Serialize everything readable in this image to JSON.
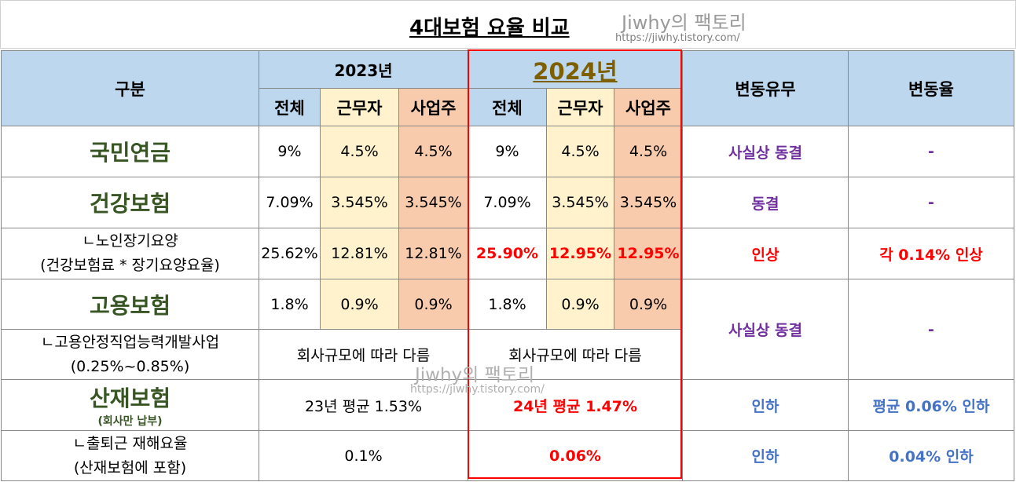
{
  "title": "4대보험 요율 비교",
  "watermark": {
    "name": "Jiwhy의 팩토리",
    "url": "https://jiwhy.tistory.com/"
  },
  "header": {
    "category": "구분",
    "year_2023": "2023년",
    "year_2024": "2024년",
    "change_status": "변동유무",
    "change_rate": "변동율",
    "cols": {
      "total": "전체",
      "worker": "근무자",
      "employer": "사업주"
    }
  },
  "rows": {
    "pension": {
      "name": "국민연금",
      "v2023": [
        "9%",
        "4.5%",
        "4.5%"
      ],
      "v2024": [
        "9%",
        "4.5%",
        "4.5%"
      ],
      "status": "사실상 동결",
      "rate": "-"
    },
    "health": {
      "name": "건강보험",
      "v2023": [
        "7.09%",
        "3.545%",
        "3.545%"
      ],
      "v2024": [
        "7.09%",
        "3.545%",
        "3.545%"
      ],
      "status": "동결",
      "rate": "-"
    },
    "ltc": {
      "name_line1": "ㄴ노인장기요양",
      "name_line2": "(건강보험료 * 장기요양요율)",
      "v2023": [
        "25.62%",
        "12.81%",
        "12.81%"
      ],
      "v2024": [
        "25.90%",
        "12.95%",
        "12.95%"
      ],
      "status": "인상",
      "rate": "각 0.14% 인상"
    },
    "employment": {
      "name": "고용보험",
      "v2023": [
        "1.8%",
        "0.9%",
        "0.9%"
      ],
      "v2024": [
        "1.8%",
        "0.9%",
        "0.9%"
      ],
      "status": "사실상 동결",
      "rate": "-"
    },
    "emp_stability": {
      "name_line1": "ㄴ고용안정직업능력개발사업",
      "name_line2": "(0.25%~0.85%)",
      "v2023": "회사규모에 따라 다름",
      "v2024": "회사규모에 따라 다름"
    },
    "industrial": {
      "name": "산재보험",
      "name_sub": "(회사만 납부)",
      "v2023": "23년 평균 1.53%",
      "v2024": "24년 평균 1.47%",
      "status": "인하",
      "rate": "평균 0.06% 인하"
    },
    "commute": {
      "name_line1": "ㄴ출퇴근 재해요율",
      "name_line2": "(산재보험에 포함)",
      "v2023": "0.1%",
      "v2024": "0.06%",
      "status": "인하",
      "rate": "0.04% 인하"
    }
  }
}
